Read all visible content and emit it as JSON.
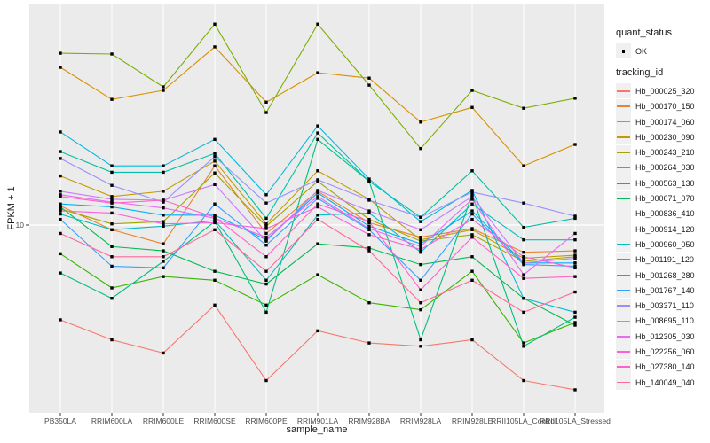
{
  "chart_data": {
    "type": "line",
    "title": "",
    "xlabel": "sample_name",
    "ylabel": "FPKM + 1",
    "y_scale": "log10",
    "y_tick_values": [
      10
    ],
    "y_tick_labels": [
      "10"
    ],
    "ylim_approx": [
      2.1,
      66
    ],
    "grid": "major",
    "legend_position": "right",
    "panel_bg": "#EBEBEB",
    "grid_color": "#FFFFFF",
    "point_color": "#000000",
    "point_shape": "square",
    "axis_text_color": "#4D4D4D",
    "categories": [
      "PB350LA",
      "RRIM600LA",
      "RRIM600LE",
      "RRIM600SE",
      "RRIM600PE",
      "RRIM901LA",
      "RRIM928BA",
      "RRIM928LA",
      "RRIM928LE",
      "RRII105LA_Control",
      "RRII105LA_Stressed"
    ],
    "series": [
      {
        "tracking_id": "Hb_000025_320",
        "color": "#F8766D",
        "values": [
          4.4,
          3.7,
          3.3,
          5.0,
          2.6,
          4.0,
          3.6,
          3.5,
          3.7,
          2.6,
          2.4
        ]
      },
      {
        "tracking_id": "Hb_000170_150",
        "color": "#EA8331",
        "values": [
          11.8,
          9.6,
          8.5,
          16.7,
          9.3,
          13.4,
          10.2,
          9.0,
          9.7,
          7.9,
          8.0
        ]
      },
      {
        "tracking_id": "Hb_000174_060",
        "color": "#D89000",
        "values": [
          39.2,
          29.7,
          32.1,
          46.8,
          29.0,
          37.4,
          35.7,
          24.4,
          27.7,
          16.7,
          20.1
        ]
      },
      {
        "tracking_id": "Hb_000230_090",
        "color": "#C49A00",
        "values": [
          15.3,
          12.8,
          13.4,
          17.4,
          10.1,
          16.0,
          12.5,
          8.8,
          9.6,
          7.5,
          7.7
        ]
      },
      {
        "tracking_id": "Hb_000243_210",
        "color": "#A3A500",
        "values": [
          11.5,
          10.1,
          10.3,
          15.7,
          9.9,
          14.6,
          10.5,
          8.7,
          9.2,
          7.3,
          7.6
        ]
      },
      {
        "tracking_id": "Hb_000264_030",
        "color": "#7CAE00",
        "values": [
          44.3,
          44.0,
          33.1,
          57.0,
          26.5,
          57.0,
          33.6,
          19.4,
          32.1,
          27.5,
          30.0
        ]
      },
      {
        "tracking_id": "Hb_000563_130",
        "color": "#39B600",
        "values": [
          7.8,
          5.8,
          6.4,
          6.2,
          5.0,
          6.5,
          5.1,
          4.8,
          6.7,
          3.6,
          4.3
        ]
      },
      {
        "tracking_id": "Hb_000671_070",
        "color": "#00BB4E",
        "values": [
          11.7,
          8.3,
          8.0,
          6.7,
          6.0,
          8.5,
          8.2,
          7.1,
          7.6,
          5.3,
          4.2
        ]
      },
      {
        "tracking_id": "Hb_000836_410",
        "color": "#00BF7D",
        "values": [
          6.6,
          5.3,
          7.3,
          10.3,
          4.7,
          21.0,
          14.6,
          3.7,
          13.0,
          3.5,
          4.5
        ]
      },
      {
        "tracking_id": "Hb_000914_120",
        "color": "#00C1A3",
        "values": [
          18.9,
          15.8,
          15.8,
          18.6,
          10.6,
          22.2,
          14.6,
          10.7,
          16.0,
          9.8,
          10.6
        ]
      },
      {
        "tracking_id": "Hb_000960_050",
        "color": "#00BFC4",
        "values": [
          11.0,
          9.6,
          9.9,
          10.4,
          6.2,
          10.9,
          11.1,
          7.9,
          12.0,
          8.8,
          8.8
        ]
      },
      {
        "tracking_id": "Hb_001191_120",
        "color": "#00BAE0",
        "values": [
          22.4,
          16.7,
          16.7,
          21.0,
          13.0,
          23.6,
          14.9,
          10.3,
          13.5,
          5.3,
          4.7
        ]
      },
      {
        "tracking_id": "Hb_001268_280",
        "color": "#00B0F6",
        "values": [
          12.0,
          11.7,
          10.9,
          10.9,
          8.8,
          13.2,
          9.9,
          8.5,
          11.3,
          7.2,
          7.2
        ]
      },
      {
        "tracking_id": "Hb_001767_140",
        "color": "#35A2FF",
        "values": [
          10.5,
          7.0,
          6.9,
          12.0,
          8.4,
          12.6,
          9.6,
          6.2,
          11.0,
          7.1,
          7.0
        ]
      },
      {
        "tracking_id": "Hb_003371_110",
        "color": "#9590FF",
        "values": [
          17.8,
          14.1,
          12.2,
          18.1,
          12.1,
          14.8,
          12.4,
          10.7,
          13.3,
          12.1,
          10.8
        ]
      },
      {
        "tracking_id": "Hb_008695_110",
        "color": "#C77CFF",
        "values": [
          13.4,
          12.5,
          12.4,
          14.2,
          8.7,
          13.5,
          11.3,
          9.6,
          12.8,
          7.2,
          7.5
        ]
      },
      {
        "tracking_id": "Hb_012305_030",
        "color": "#E76BF3",
        "values": [
          13.0,
          12.2,
          11.6,
          10.6,
          9.0,
          12.8,
          9.7,
          8.3,
          12.5,
          6.5,
          9.3
        ]
      },
      {
        "tracking_id": "Hb_022256_060",
        "color": "#FA62DB",
        "values": [
          11.3,
          11.1,
          10.1,
          10.2,
          9.7,
          11.7,
          9.2,
          8.1,
          10.5,
          7.6,
          6.9
        ]
      },
      {
        "tracking_id": "Hb_027380_140",
        "color": "#FF61C9",
        "values": [
          12.8,
          12.1,
          12.4,
          10.7,
          7.6,
          12.0,
          10.3,
          5.7,
          9.0,
          6.3,
          6.4
        ]
      },
      {
        "tracking_id": "Hb_140049_040",
        "color": "#FF6A98",
        "values": [
          9.3,
          7.6,
          7.6,
          9.6,
          6.7,
          10.5,
          8.0,
          5.1,
          6.2,
          4.7,
          5.6
        ]
      }
    ],
    "legend": {
      "quant_status": {
        "title": "quant_status",
        "items": [
          {
            "label": "OK",
            "shape": "square-point"
          }
        ]
      },
      "tracking_id": {
        "title": "tracking_id"
      }
    }
  }
}
